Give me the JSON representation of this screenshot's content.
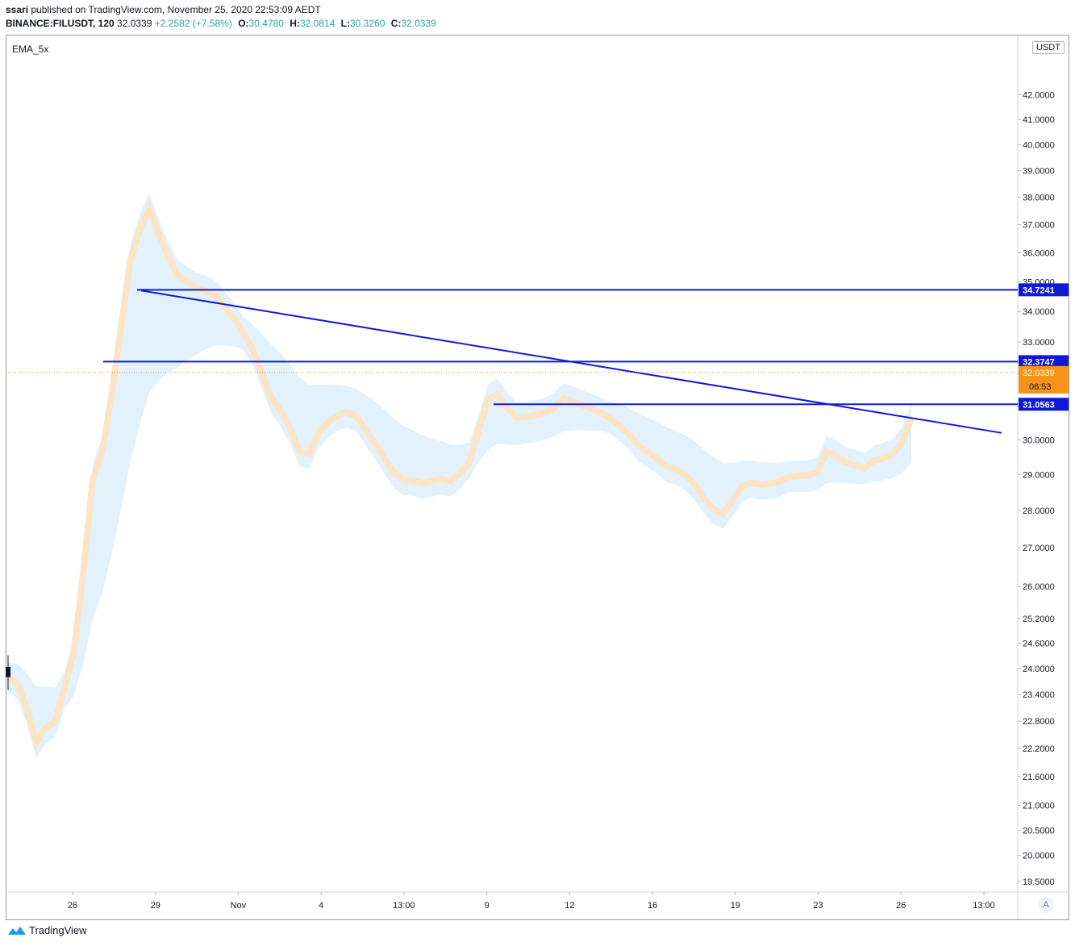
{
  "header": {
    "publisher": "ssari",
    "published_text": "published on TradingView.com, November 25, 2020 22:53:09 AEDT",
    "symbol": "BINANCE:FILUSDT, 120",
    "last": "32.0339",
    "change": "+2.2582 (+7.58%)",
    "o_label": "O:",
    "o": "30.4780",
    "h_label": "H:",
    "h": "32.0814",
    "l_label": "L:",
    "l": "30.3260",
    "c_label": "C:",
    "c": "32.0339"
  },
  "indicator_label": "EMA_5x",
  "currency_label": "USDT",
  "countdown": "06:53",
  "auto_button": "A",
  "footer": {
    "brand": "TradingView"
  },
  "colors": {
    "up": "#f7931a",
    "down": "#131722",
    "line": "#1018d6",
    "ema_orange": "#fde2c0",
    "ema_blue": "#dceefc"
  },
  "chart_data": {
    "type": "candlestick",
    "title": "",
    "xlabel": "",
    "ylabel": "",
    "y_scale": "log",
    "ylim": [
      19.3,
      44.5
    ],
    "y_ticks": [
      "42.0000",
      "41.0000",
      "40.0000",
      "39.0000",
      "38.0000",
      "37.0000",
      "36.0000",
      "35.0000",
      "34.0000",
      "33.0000",
      "32.0000",
      "31.0000",
      "30.0000",
      "29.0000",
      "28.0000",
      "27.0000",
      "26.0000",
      "25.2000",
      "24.6000",
      "24.0000",
      "23.4000",
      "22.8000",
      "22.2000",
      "21.6000",
      "21.0000",
      "20.5000",
      "20.0000",
      "19.5000"
    ],
    "x_ticks": [
      "26",
      "29",
      "Nov",
      "4",
      "13:00",
      "9",
      "12",
      "16",
      "19",
      "23",
      "26",
      "13:00"
    ],
    "series_close": [
      23.8,
      23.4,
      22.0,
      20.9,
      23.3,
      23.0,
      25.0,
      26.0,
      30.0,
      33.5,
      31.0,
      34.5,
      37.5,
      40.0,
      38.8,
      39.0,
      35.0,
      34.4,
      34.0,
      34.6,
      34.4,
      34.5,
      34.2,
      33.5,
      33.1,
      32.4,
      31.8,
      30.5,
      29.9,
      30.1,
      29.4,
      28.4,
      29.5,
      31.3,
      31.1,
      31.1,
      31.0,
      30.5,
      29.5,
      29.2,
      28.6,
      28.3,
      28.5,
      28.8,
      28.6,
      28.9,
      29.0,
      28.7,
      29.4,
      29.9,
      32.0,
      32.9,
      31.7,
      30.2,
      30.1,
      30.7,
      30.8,
      30.9,
      31.2,
      31.8,
      31.0,
      30.8,
      30.7,
      30.6,
      30.3,
      30.0,
      29.7,
      29.2,
      29.3,
      29.1,
      28.8,
      29.0,
      28.7,
      28.2,
      27.6,
      27.5,
      27.7,
      28.9,
      29.4,
      29.0,
      28.6,
      28.8,
      28.9,
      29.2,
      29.0,
      29.0,
      29.2,
      30.8,
      29.3,
      29.0,
      29.1,
      29.0,
      29.8,
      29.6,
      29.8,
      30.5,
      32.03
    ],
    "candle_count": 97,
    "horizontal_levels": [
      "34.7241",
      "32.3747",
      "31.0563"
    ],
    "last_price": "32.0339",
    "trendline": {
      "from": 34.7,
      "to": 30.2
    },
    "indicator": "EMA_5x"
  }
}
